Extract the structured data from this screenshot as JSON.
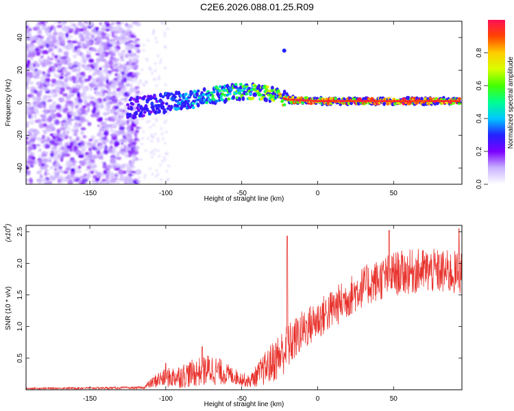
{
  "figure_title": "C2E6.2026.088.01.25.R09",
  "chart_data": [
    {
      "type": "heatmap",
      "title": "C2E6.2026.088.01.25.R09",
      "xlabel": "Height of straight line (km)",
      "ylabel": "Frequency (Hz)",
      "xlim": [
        -192,
        95
      ],
      "ylim": [
        -50,
        50
      ],
      "xticks": [
        -150,
        -100,
        -50,
        0,
        50
      ],
      "yticks": [
        -40,
        -20,
        0,
        20,
        40
      ],
      "colorbar": {
        "label": "Normalized spectral amplitude",
        "range": [
          0,
          1
        ],
        "ticks": [
          0.0,
          0.2,
          0.4,
          0.6,
          0.8
        ],
        "tick_labels": [
          "0.0",
          "0.2",
          "0.4",
          "0.6",
          "0.8"
        ],
        "colormap": [
          "#ffffff",
          "#c9b3ff",
          "#7b00ff",
          "#2222ff",
          "#00c8ff",
          "#00ff90",
          "#44ff00",
          "#d8ff00",
          "#ffcc00",
          "#ff4400",
          "#ff1055"
        ]
      },
      "ridge": [
        {
          "x": -120,
          "y": -3,
          "amp": 0.25
        },
        {
          "x": -100,
          "y": 0,
          "amp": 0.35
        },
        {
          "x": -80,
          "y": 2,
          "amp": 0.45
        },
        {
          "x": -65,
          "y": 5,
          "amp": 0.55
        },
        {
          "x": -50,
          "y": 7,
          "amp": 0.6
        },
        {
          "x": -40,
          "y": 7,
          "amp": 0.7
        },
        {
          "x": -30,
          "y": 5,
          "amp": 0.7
        },
        {
          "x": -20,
          "y": 2,
          "amp": 0.85
        },
        {
          "x": 0,
          "y": 1,
          "amp": 0.9
        },
        {
          "x": 50,
          "y": 1,
          "amp": 0.95
        },
        {
          "x": 93,
          "y": 1,
          "amp": 0.95
        }
      ],
      "outlier": {
        "x": -22,
        "y": 32,
        "amp": 0.3
      }
    },
    {
      "type": "line",
      "xlabel": "Height of straight line (km)",
      "ylabel": "SNR (10 * v/v)",
      "y_multiplier": "(x10",
      "y_multiplier_exp": "4",
      "y_multiplier_close": ")",
      "xlim": [
        -192,
        95
      ],
      "ylim": [
        0,
        2.6
      ],
      "xticks": [
        -150,
        -100,
        -50,
        0,
        50
      ],
      "yticks": [
        0.5,
        1.0,
        1.5,
        2.0,
        2.5
      ],
      "ytick_labels": [
        "0.5",
        "1.0",
        "1.5",
        "2.0",
        "2.5"
      ],
      "series_color": "#e8312b",
      "envelope": [
        {
          "x": -192,
          "base": 0.02,
          "amp": 0.02
        },
        {
          "x": -115,
          "base": 0.03,
          "amp": 0.03
        },
        {
          "x": -105,
          "base": 0.15,
          "amp": 0.2
        },
        {
          "x": -90,
          "base": 0.2,
          "amp": 0.3
        },
        {
          "x": -70,
          "base": 0.3,
          "amp": 0.4
        },
        {
          "x": -55,
          "base": 0.2,
          "amp": 0.2
        },
        {
          "x": -45,
          "base": 0.12,
          "amp": 0.15
        },
        {
          "x": -35,
          "base": 0.3,
          "amp": 0.4
        },
        {
          "x": -25,
          "base": 0.5,
          "amp": 0.6
        },
        {
          "x": -10,
          "base": 0.9,
          "amp": 0.5
        },
        {
          "x": 10,
          "base": 1.25,
          "amp": 0.5
        },
        {
          "x": 30,
          "base": 1.6,
          "amp": 0.5
        },
        {
          "x": 50,
          "base": 1.8,
          "amp": 0.55
        },
        {
          "x": 70,
          "base": 1.85,
          "amp": 0.55
        },
        {
          "x": 95,
          "base": 1.8,
          "amp": 0.55
        }
      ],
      "spikes": [
        {
          "x": -20,
          "y": 2.43
        },
        {
          "x": 47,
          "y": 2.52
        },
        {
          "x": 93,
          "y": 2.55
        },
        {
          "x": -76,
          "y": 0.68
        },
        {
          "x": -100,
          "y": 0.42
        }
      ]
    }
  ]
}
